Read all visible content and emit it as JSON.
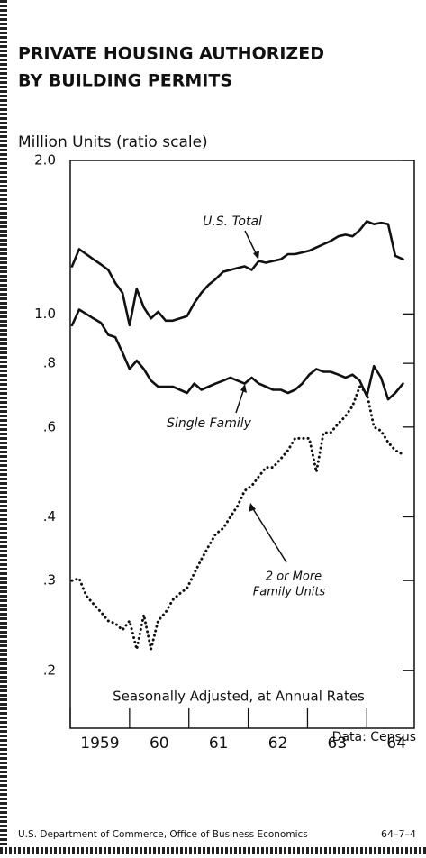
{
  "chart_data": {
    "type": "line",
    "title": [
      "PRIVATE HOUSING AUTHORIZED",
      "BY BUILDING PERMITS"
    ],
    "y_label": "Million Units (ratio scale)",
    "x_label": "Seasonally Adjusted, at Annual Rates",
    "source": "Data: Census",
    "footer": "U.S. Department of Commerce, Office of Business Economics",
    "footer_code": "64–7–4",
    "annotations": [
      "U.S. Total",
      "Single Family",
      "2 or More",
      "Family Units"
    ],
    "log_scale": true,
    "xlim": [
      1959,
      1964.8
    ],
    "ylim": [
      0.154,
      2.0
    ],
    "xticks": [
      1959,
      {
        "value": 1960,
        "label": "60"
      },
      {
        "value": 1961,
        "label": "61"
      },
      {
        "value": 1962,
        "label": "62"
      },
      {
        "value": 1963,
        "label": "63"
      },
      {
        "value": 1964,
        "label": "64"
      }
    ],
    "yticks": [
      {
        "value": 2,
        "label": "2.0"
      },
      {
        "value": 1,
        "label": "1.0"
      },
      {
        "value": 0.8,
        "label": ".8"
      },
      {
        "value": 0.6,
        "label": ".6"
      },
      {
        "value": 0.4,
        "label": ".4"
      },
      {
        "value": 0.3,
        "label": ".3"
      },
      {
        "value": 0.2,
        "label": ".2"
      }
    ],
    "x": [
      1959.03,
      1959.15,
      1959.27,
      1959.39,
      1959.52,
      1959.64,
      1959.76,
      1959.88,
      1960.0,
      1960.12,
      1960.24,
      1960.36,
      1960.48,
      1960.61,
      1960.73,
      1960.85,
      1960.97,
      1961.09,
      1961.21,
      1961.33,
      1961.45,
      1961.58,
      1961.7,
      1961.82,
      1961.94,
      1962.06,
      1962.18,
      1962.3,
      1962.42,
      1962.55,
      1962.67,
      1962.79,
      1962.91,
      1963.03,
      1963.15,
      1963.27,
      1963.39,
      1963.52,
      1963.64,
      1963.76,
      1963.88,
      1964.0,
      1964.12,
      1964.24,
      1964.36,
      1964.48,
      1964.61
    ],
    "series": [
      {
        "name": "U.S. Total",
        "color": "#111111",
        "line_style": "solid",
        "values": [
          1.24,
          1.34,
          1.31,
          1.28,
          1.25,
          1.22,
          1.15,
          1.1,
          0.95,
          1.12,
          1.03,
          0.98,
          1.01,
          0.97,
          0.97,
          0.98,
          0.99,
          1.05,
          1.1,
          1.14,
          1.17,
          1.21,
          1.22,
          1.23,
          1.24,
          1.22,
          1.27,
          1.26,
          1.27,
          1.28,
          1.31,
          1.31,
          1.32,
          1.33,
          1.35,
          1.37,
          1.39,
          1.42,
          1.43,
          1.42,
          1.46,
          1.52,
          1.5,
          1.51,
          1.5,
          1.3,
          1.28
        ]
      },
      {
        "name": "Single Family",
        "color": "#111111",
        "line_style": "solid",
        "values": [
          0.95,
          1.02,
          1.0,
          0.98,
          0.96,
          0.91,
          0.9,
          0.84,
          0.78,
          0.81,
          0.78,
          0.74,
          0.72,
          0.72,
          0.72,
          0.71,
          0.7,
          0.73,
          0.71,
          0.72,
          0.73,
          0.74,
          0.75,
          0.74,
          0.73,
          0.75,
          0.73,
          0.72,
          0.71,
          0.71,
          0.7,
          0.71,
          0.73,
          0.76,
          0.78,
          0.77,
          0.77,
          0.76,
          0.75,
          0.76,
          0.74,
          0.69,
          0.79,
          0.75,
          0.68,
          0.7,
          0.73
        ]
      },
      {
        "name": "2 or More Family Units",
        "color": "#111111",
        "line_style": "dotted",
        "values": [
          0.3,
          0.303,
          0.28,
          0.27,
          0.26,
          0.25,
          0.247,
          0.24,
          0.25,
          0.22,
          0.257,
          0.22,
          0.25,
          0.26,
          0.275,
          0.283,
          0.29,
          0.31,
          0.33,
          0.35,
          0.37,
          0.38,
          0.4,
          0.42,
          0.45,
          0.46,
          0.48,
          0.5,
          0.5,
          0.52,
          0.54,
          0.57,
          0.57,
          0.57,
          0.49,
          0.585,
          0.585,
          0.61,
          0.63,
          0.66,
          0.72,
          0.7,
          0.6,
          0.59,
          0.56,
          0.54,
          0.53
        ]
      }
    ]
  }
}
